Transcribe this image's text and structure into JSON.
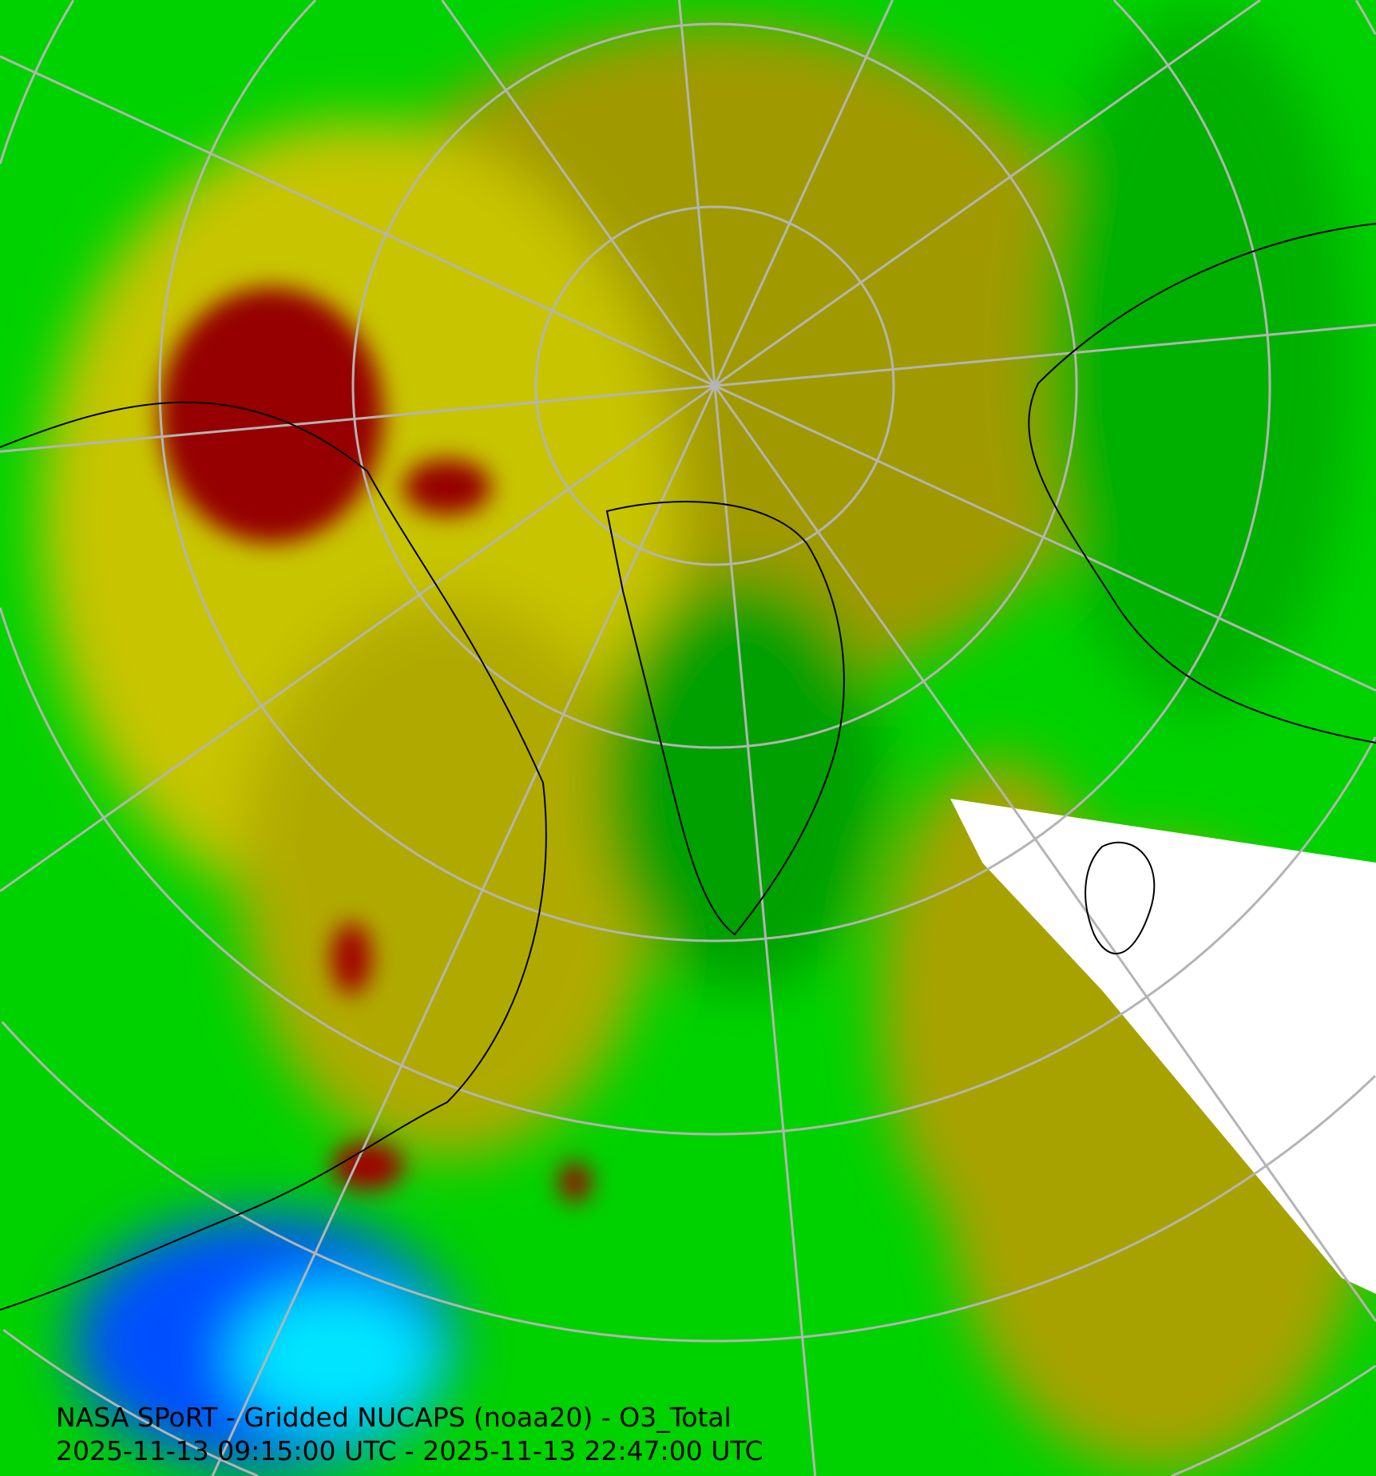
{
  "title": "NASA SPoRT - Gridded NUCAPS (noaa20) - O3_Total",
  "time_range": "2025-11-13 09:15:00 UTC - 2025-11-13 22:47:00 UTC",
  "map": {
    "projection": "north-polar-stereographic",
    "field": "O3_Total",
    "colors": {
      "very_low": "#0040ff",
      "low": "#00e5ff",
      "mid_low": "#00b400",
      "mid": "#00ee00",
      "mid_high": "#9c9600",
      "high": "#e6e600",
      "very_high": "#960000",
      "extreme": "#ff00ff",
      "no_data": "#ffffff",
      "graticule": "#b4b4b4",
      "coastlines": "#000000"
    }
  }
}
